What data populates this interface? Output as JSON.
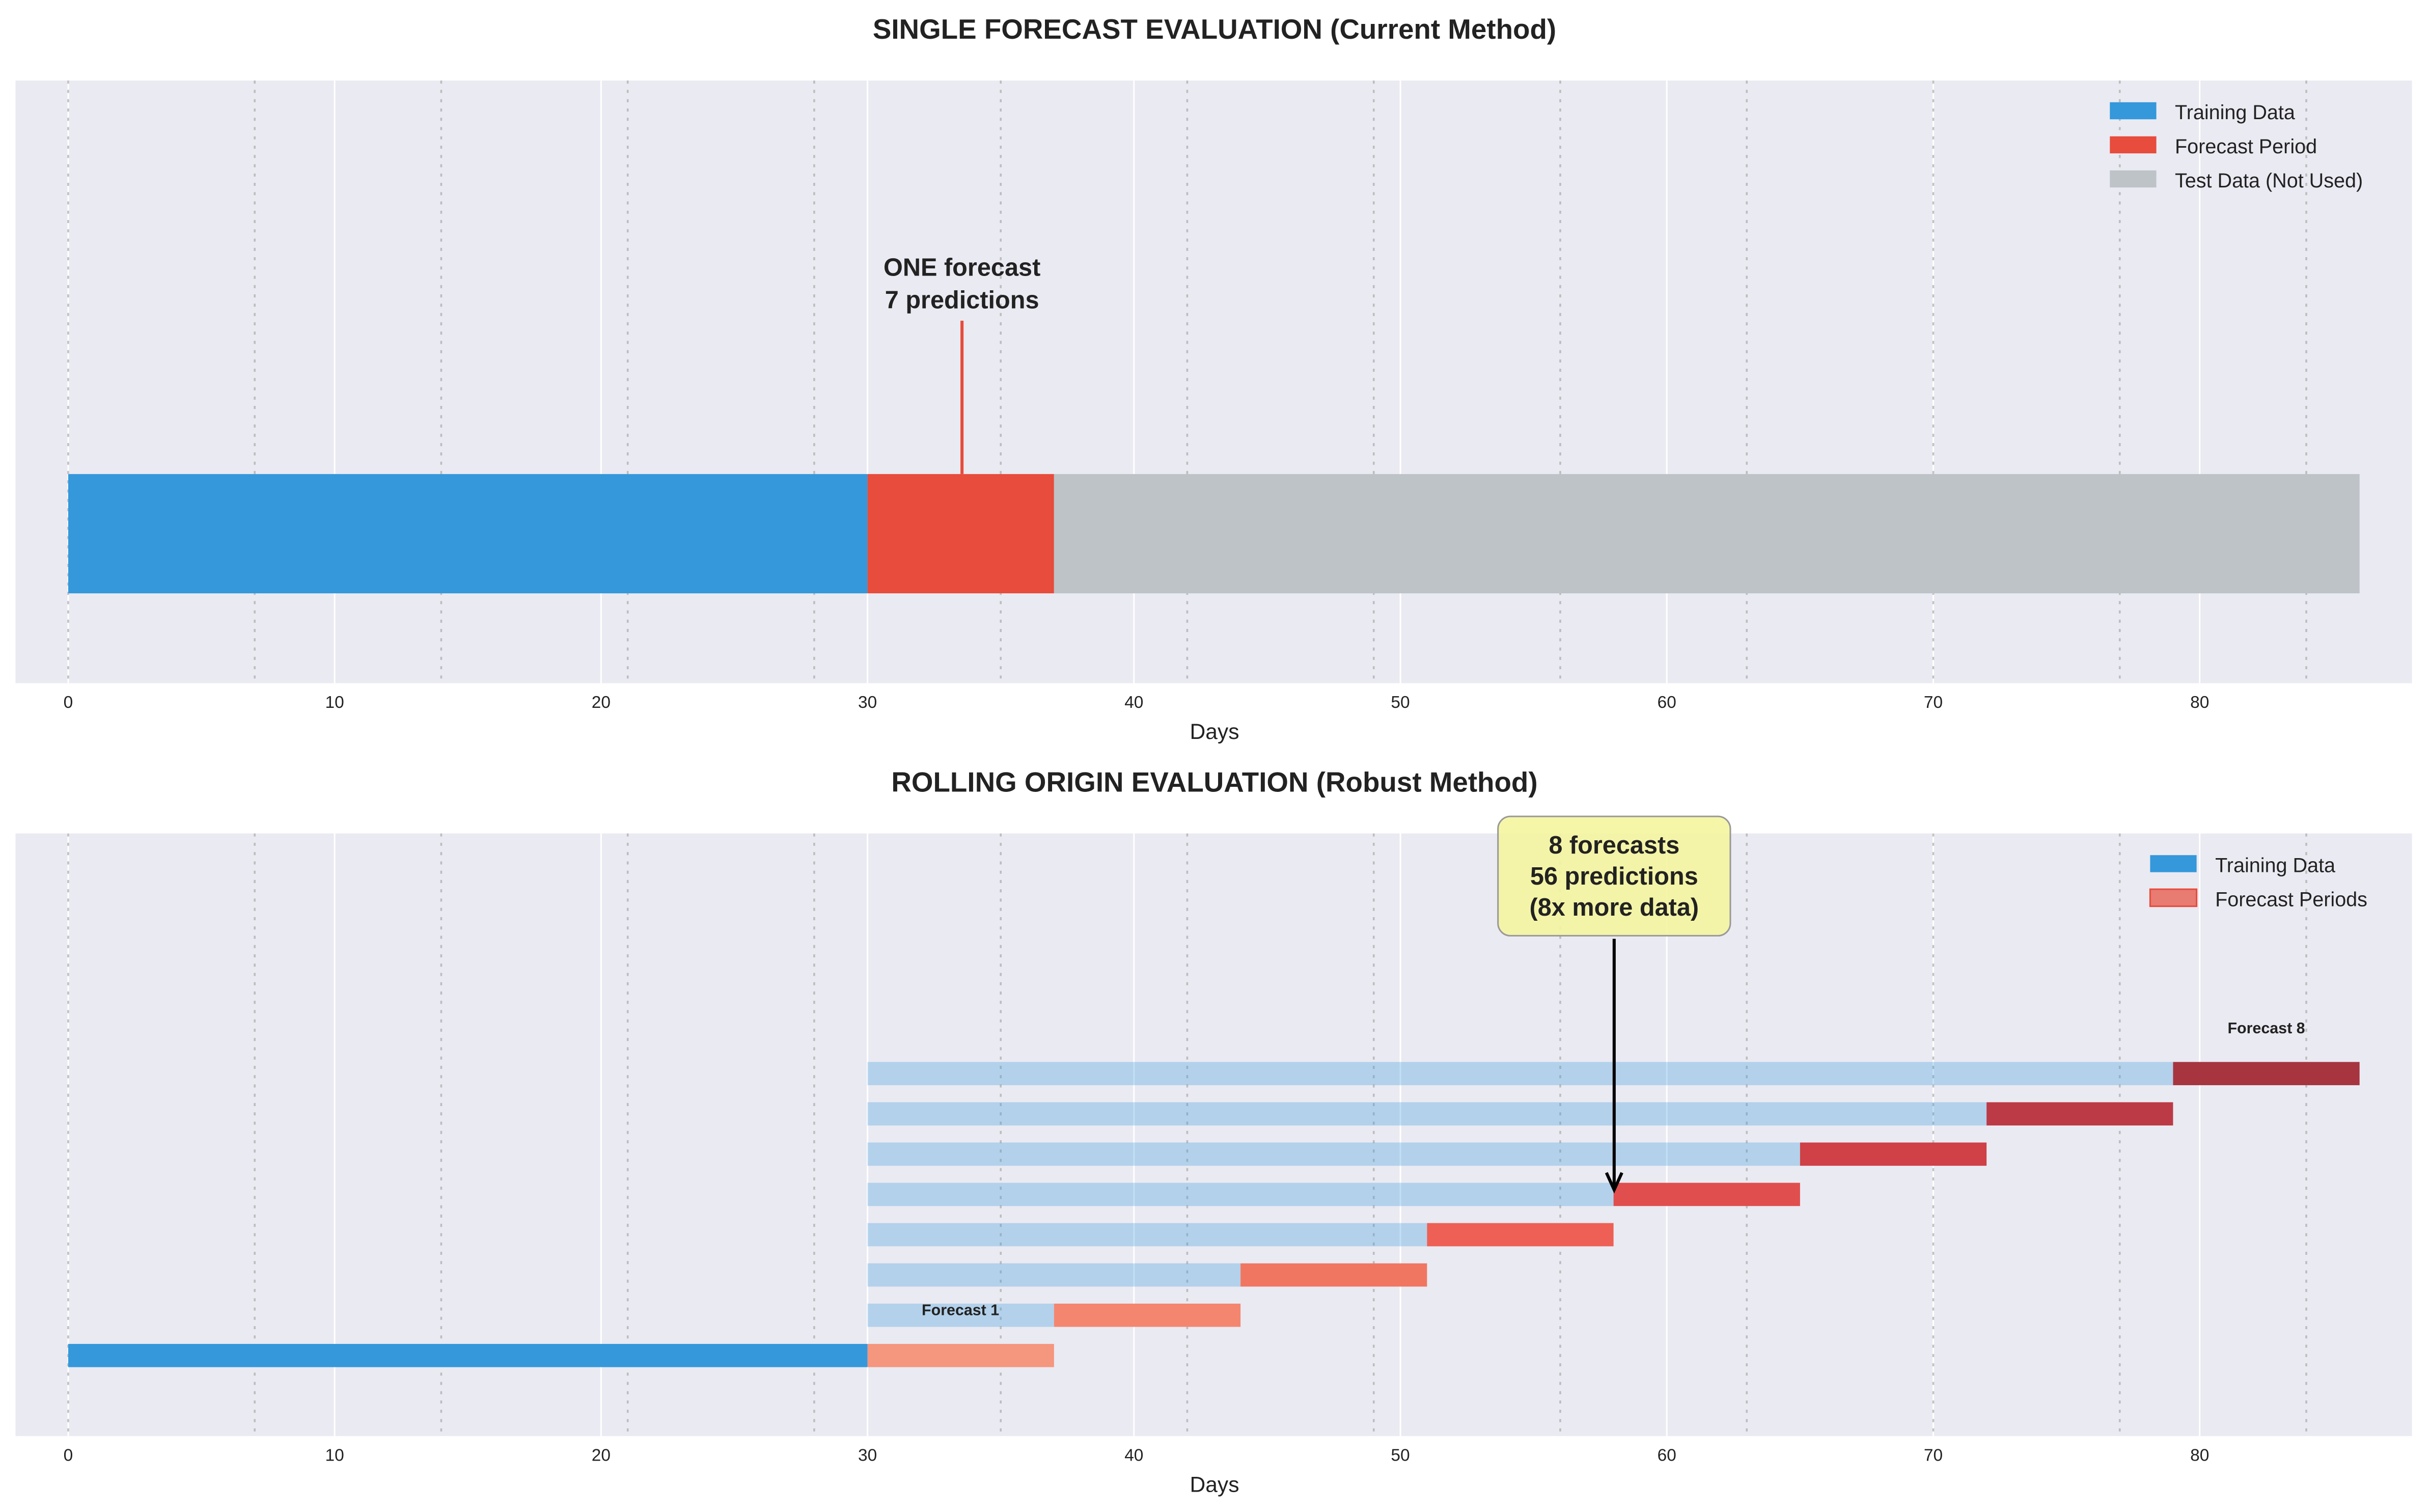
{
  "chart_data": [
    {
      "type": "bar",
      "title": "SINGLE FORECAST EVALUATION (Current Method)",
      "xlabel": "Days",
      "xlim": [
        -2,
        88
      ],
      "xticks": [
        "0",
        "10",
        "20",
        "30",
        "40",
        "50",
        "60",
        "70",
        "80"
      ],
      "week_marker_days": [
        0,
        7,
        14,
        21,
        28,
        35,
        42,
        49,
        56,
        63,
        70,
        77,
        84
      ],
      "segments": [
        {
          "name": "Training Data",
          "start": 0,
          "end": 30,
          "color": "#3498db"
        },
        {
          "name": "Forecast Period",
          "start": 30,
          "end": 37,
          "color": "#e74c3c"
        },
        {
          "name": "Test Data (Not Used)",
          "start": 37,
          "end": 86,
          "color": "#bdc3c7"
        }
      ],
      "legend": [
        "Training Data",
        "Forecast Period",
        "Test Data (Not Used)"
      ],
      "legend_position": "top-right",
      "annotation": {
        "lines": [
          "ONE forecast",
          "7 predictions"
        ],
        "x": 33.5
      }
    },
    {
      "type": "bar",
      "title": "ROLLING ORIGIN EVALUATION (Robust Method)",
      "xlabel": "Days",
      "xlim": [
        -2,
        88
      ],
      "xticks": [
        "0",
        "10",
        "20",
        "30",
        "40",
        "50",
        "60",
        "70",
        "80"
      ],
      "week_marker_days": [
        0,
        7,
        14,
        21,
        28,
        35,
        42,
        49,
        56,
        63,
        70,
        77,
        84
      ],
      "rows": [
        {
          "train_start": 0,
          "train_end": 30,
          "forecast_start": 30,
          "forecast_end": 37,
          "forecast_color": "#f5967f"
        },
        {
          "train_start": 30,
          "train_end": 37,
          "forecast_start": 37,
          "forecast_end": 44,
          "forecast_color": "#f4866f"
        },
        {
          "train_start": 30,
          "train_end": 44,
          "forecast_start": 44,
          "forecast_end": 51,
          "forecast_color": "#f07662"
        },
        {
          "train_start": 30,
          "train_end": 51,
          "forecast_start": 51,
          "forecast_end": 58,
          "forecast_color": "#ee6055"
        },
        {
          "train_start": 30,
          "train_end": 58,
          "forecast_start": 58,
          "forecast_end": 65,
          "forecast_color": "#e04e4e"
        },
        {
          "train_start": 30,
          "train_end": 65,
          "forecast_start": 65,
          "forecast_end": 72,
          "forecast_color": "#cf4047"
        },
        {
          "train_start": 30,
          "train_end": 72,
          "forecast_start": 72,
          "forecast_end": 79,
          "forecast_color": "#bc3a45"
        },
        {
          "train_start": 30,
          "train_end": 79,
          "forecast_start": 79,
          "forecast_end": 86,
          "forecast_color": "#a63540"
        }
      ],
      "row_labels": {
        "first": "Forecast 1",
        "last": "Forecast 8"
      },
      "legend": [
        "Training Data",
        "Forecast Periods"
      ],
      "legend_position": "top-right",
      "annotation": {
        "lines": [
          "8 forecasts",
          "56 predictions",
          "(8x more data)"
        ],
        "x": 58
      }
    }
  ]
}
